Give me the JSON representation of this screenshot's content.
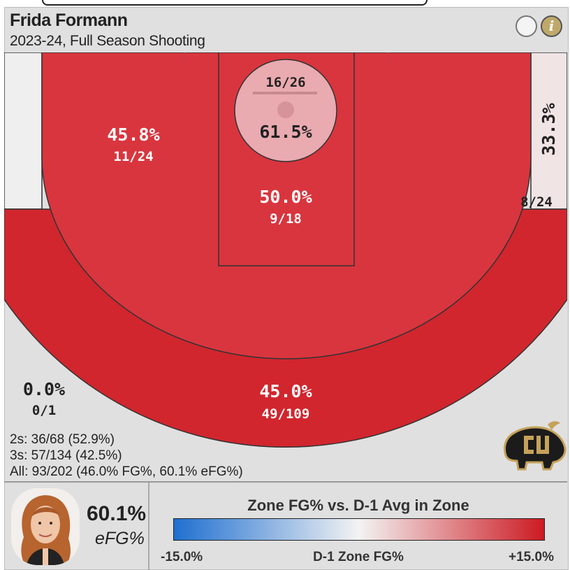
{
  "player": {
    "name": "Frida Formann",
    "season": "2023-24, Full Season Shooting"
  },
  "header": {
    "info_icon": "info-icon",
    "toggle_icon": "circle-toggle-icon"
  },
  "chart_data": {
    "type": "heatmap",
    "zones": [
      {
        "zone": "restricted-area",
        "pct": "61.5%",
        "made": "16/26",
        "fill": "#e9aab0",
        "text_color": "#222222"
      },
      {
        "zone": "paint",
        "pct": "50.0%",
        "made": "9/18",
        "fill": "#d9353e",
        "text_color": "#ffffff"
      },
      {
        "zone": "mid-range",
        "pct": "45.8%",
        "made": "11/24",
        "fill": "#d9353e",
        "text_color": "#ffffff"
      },
      {
        "zone": "right-corner-three",
        "pct": "33.3%",
        "made": "8/24",
        "fill": "#f1e4e4",
        "text_color": "#222222"
      },
      {
        "zone": "above-break-three",
        "pct": "45.0%",
        "made": "49/109",
        "fill": "#d1262e",
        "text_color": "#ffffff"
      },
      {
        "zone": "left-corner-three",
        "pct": "0.0%",
        "made": "0/1",
        "fill": "#efefef",
        "text_color": "#222222"
      }
    ]
  },
  "totals": {
    "twos": "2s: 36/68 (52.9%)",
    "threes": "3s: 57/134 (42.5%)",
    "all": "All: 93/202 (46.0% FG%, 60.1% eFG%)"
  },
  "team_logo": "buffalo-logo",
  "efg": {
    "value": "60.1%",
    "label": "eFG%"
  },
  "legend": {
    "title": "Zone FG% vs. D-1 Avg in Zone",
    "min": "-15.0%",
    "center": "D-1 Zone FG%",
    "max": "+15.0%",
    "color_low": "#1f6fd0",
    "color_mid": "#f3f3f3",
    "color_high": "#cc1a22"
  }
}
